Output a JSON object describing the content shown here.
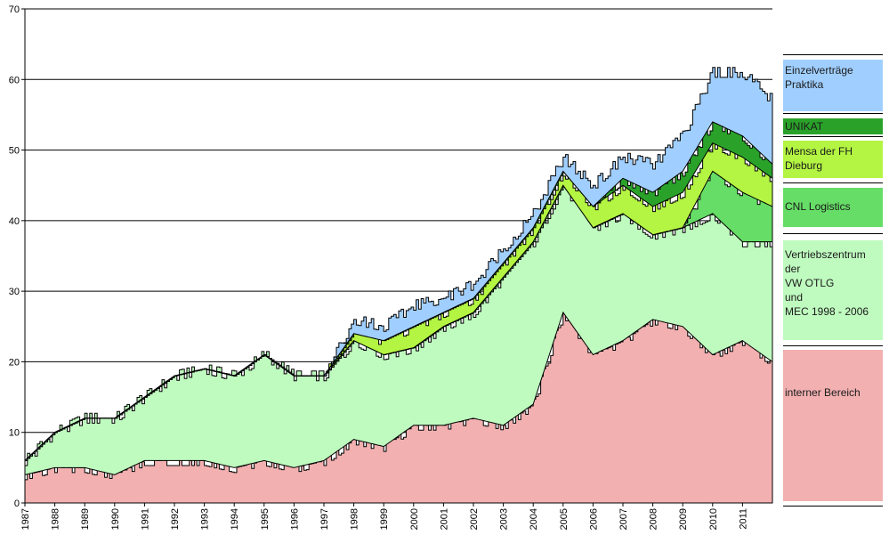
{
  "chart_data": {
    "type": "area",
    "stacked": true,
    "ylim": [
      0,
      70
    ],
    "yticks": [
      0,
      10,
      20,
      30,
      40,
      50,
      60,
      70
    ],
    "xticks": [
      "1987",
      "1988",
      "1989",
      "1990",
      "1991",
      "1992",
      "1993",
      "1994",
      "1995",
      "1996",
      "1997",
      "1998",
      "1999",
      "2000",
      "2001",
      "2002",
      "2003",
      "2004",
      "2005",
      "2006",
      "2007",
      "2008",
      "2009",
      "2010",
      "2011"
    ],
    "x": [
      1987,
      1988,
      1989,
      1990,
      1991,
      1992,
      1993,
      1994,
      1995,
      1996,
      1997,
      1998,
      1999,
      2000,
      2001,
      2002,
      2003,
      2004,
      2005,
      2006,
      2007,
      2008,
      2009,
      2010,
      2011,
      2012
    ],
    "grid": "horizontal",
    "legend_position": "right",
    "series": [
      {
        "name": "interner Bereich",
        "color": "#F2B0B0",
        "values": [
          4,
          5,
          5,
          4,
          6,
          6,
          6,
          5,
          6,
          5,
          6,
          9,
          8,
          11,
          11,
          12,
          11,
          14,
          27,
          21,
          23,
          26,
          25,
          21,
          23,
          20
        ]
      },
      {
        "name": "Vertriebszentrum der VW OTLG und MEC 1998 - 2006",
        "color": "#BFFBBF",
        "values": [
          2,
          5,
          7,
          8,
          9,
          12,
          13,
          13,
          15,
          13,
          12,
          14,
          13,
          11,
          14,
          15,
          21,
          23,
          18,
          18,
          18,
          12,
          14,
          20,
          14,
          17
        ]
      },
      {
        "name": "CNL Logistics",
        "color": "#66DD66",
        "values": [
          0,
          0,
          0,
          0,
          0,
          0,
          0,
          0,
          0,
          0,
          0,
          0,
          0,
          0,
          0,
          0,
          0,
          0,
          0,
          0,
          0,
          0,
          0,
          6,
          7,
          5
        ]
      },
      {
        "name": "Mensa der FH Dieburg",
        "color": "#B3F542",
        "values": [
          0,
          0,
          0,
          0,
          0,
          0,
          0,
          0,
          0,
          0,
          0,
          1,
          2,
          3,
          2,
          2,
          2,
          2,
          2,
          3,
          4,
          4,
          5,
          4,
          5,
          4
        ]
      },
      {
        "name": "UNIKAT",
        "color": "#2AA22A",
        "values": [
          0,
          0,
          0,
          0,
          0,
          0,
          0,
          0,
          0,
          0,
          0,
          0,
          0,
          0,
          0,
          0,
          0,
          0,
          0,
          0,
          1,
          2,
          3,
          3,
          3,
          2
        ]
      },
      {
        "name": "Einzelverträge Praktika",
        "color": "#A0CFFF",
        "values": [
          0,
          0,
          0,
          0,
          0,
          0,
          0,
          0,
          0,
          0,
          0,
          2,
          2,
          3,
          2,
          2,
          2,
          2,
          2,
          3,
          3,
          4,
          5,
          7,
          9,
          9
        ]
      }
    ]
  },
  "legend": {
    "einzel": [
      "Einzelverträge",
      "Praktika"
    ],
    "unikat": [
      "UNIKAT"
    ],
    "mensa": [
      "Mensa der FH",
      "Dieburg"
    ],
    "cnl": [
      "CNL Logistics"
    ],
    "vz": [
      "Vertriebszentrum der",
      "VW OTLG",
      "und",
      "MEC 1998 - 2006"
    ],
    "intern": [
      "interner Bereich"
    ]
  }
}
